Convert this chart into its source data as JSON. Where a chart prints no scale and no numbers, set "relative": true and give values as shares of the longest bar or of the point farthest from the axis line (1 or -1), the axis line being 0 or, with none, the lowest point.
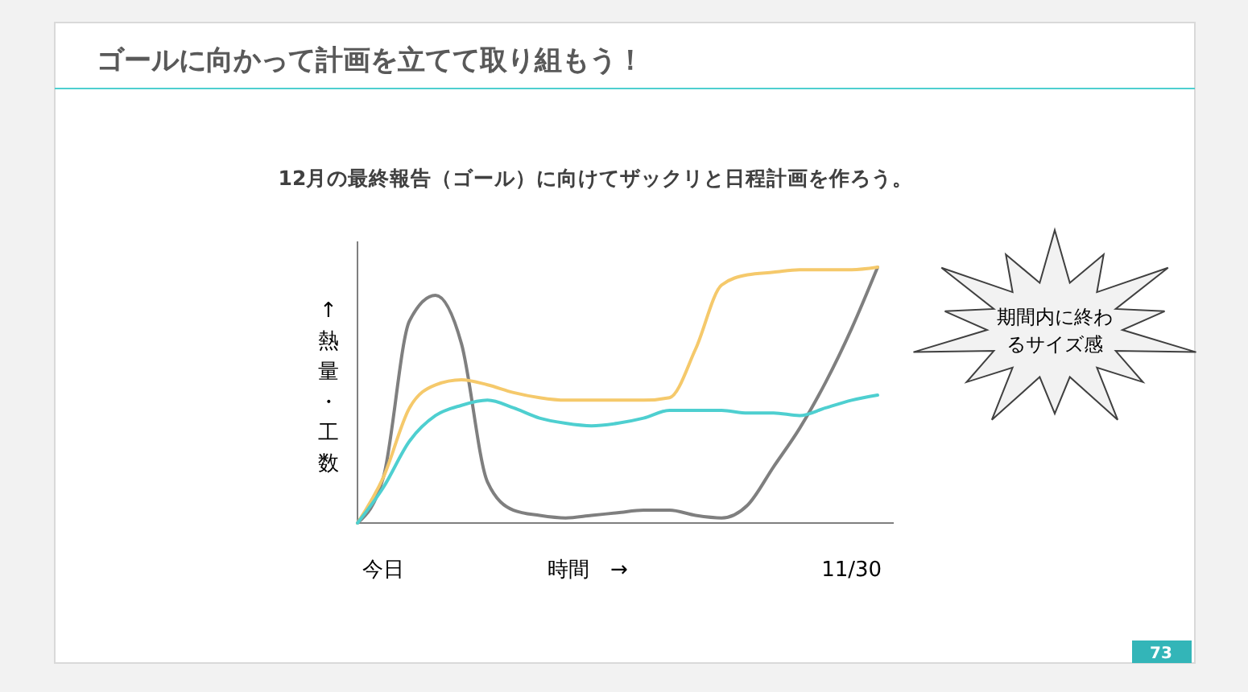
{
  "chart_data": {
    "type": "line",
    "relative": true,
    "title": "ゴールに向かって計画を立てて取り組もう！",
    "subtitle": "12月の最終報告（ゴール）に向けてザックリと日程計画を作ろう。",
    "xlabel": "時間　→",
    "ylabel": "↑熱量・工数",
    "annotations": [
      "期間内に終わるサイズ感",
      "73"
    ],
    "categories": [
      null,
      "今日",
      null,
      null,
      null,
      null,
      null,
      null,
      null,
      null,
      null,
      null,
      null,
      null,
      null,
      null,
      null,
      null,
      null,
      "11/30",
      null
    ],
    "series": [
      {
        "color": "#7f7f7f",
        "values": [
          0,
          0.18,
          0.79,
          0.89,
          0.7,
          0.16,
          0.05,
          0.03,
          0.02,
          0.03,
          0.04,
          0.05,
          0.05,
          0.03,
          0.02,
          0.07,
          0.22,
          0.37,
          0.55,
          0.76,
          1
        ]
      },
      {
        "color": "#f5c96b",
        "values": [
          0,
          0.18,
          0.45,
          0.54,
          0.56,
          0.54,
          0.51,
          0.49,
          0.48,
          0.48,
          0.48,
          0.48,
          0.49,
          0.68,
          0.93,
          0.97,
          0.98,
          0.99,
          0.99,
          0.99,
          1
        ]
      },
      {
        "color": "#4ecfd0",
        "values": [
          0,
          0.14,
          0.32,
          0.42,
          0.46,
          0.48,
          0.45,
          0.41,
          0.39,
          0.38,
          0.39,
          0.41,
          0.44,
          0.44,
          0.44,
          0.43,
          0.43,
          0.42,
          0.45,
          0.48,
          0.5
        ]
      }
    ],
    "line_style": "solid"
  }
}
